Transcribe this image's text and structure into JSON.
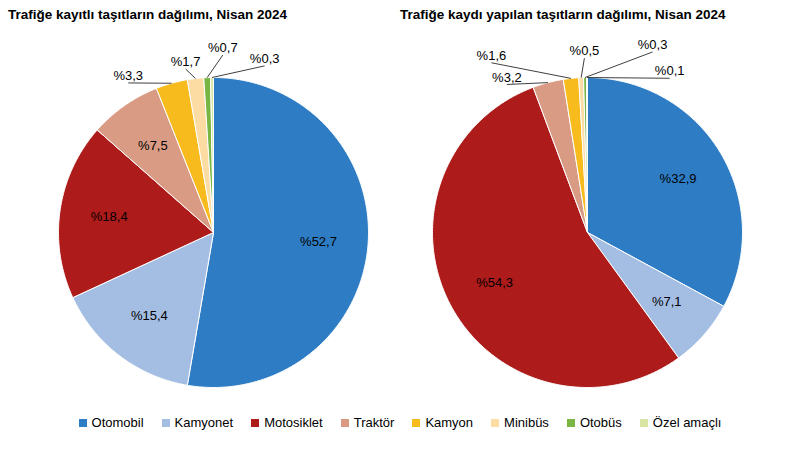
{
  "chart_data": [
    {
      "type": "pie",
      "title": "Trafiğe kayıtlı taşıtların dağılımı, Nisan 2024",
      "categories": [
        "Otomobil",
        "Kamyonet",
        "Motosiklet",
        "Traktör",
        "Kamyon",
        "Minibüs",
        "Otobüs",
        "Özel amaçlı"
      ],
      "values": [
        52.7,
        15.4,
        18.4,
        7.5,
        3.3,
        1.7,
        0.7,
        0.3
      ],
      "value_labels": [
        "%52,7",
        "%15,4",
        "%18,4",
        "%7,5",
        "%3,3",
        "%1,7",
        "%0,7",
        "%0,3"
      ],
      "colors": [
        "#2e7dc4",
        "#a4bee3",
        "#ad1b1b",
        "#da9b84",
        "#f8bb1d",
        "#fcdca3",
        "#78b543",
        "#d9e5a3"
      ],
      "data_labels": true,
      "legend": "bottom"
    },
    {
      "type": "pie",
      "title": "Trafiğe kaydı yapılan taşıtların dağılımı, Nisan 2024",
      "categories": [
        "Otomobil",
        "Kamyonet",
        "Motosiklet",
        "Traktör",
        "Kamyon",
        "Minibüs",
        "Otobüs",
        "Özel amaçlı"
      ],
      "values": [
        32.9,
        7.1,
        54.3,
        3.2,
        1.6,
        0.5,
        0.3,
        0.1
      ],
      "value_labels": [
        "%32,9",
        "%7,1",
        "%54,3",
        "%3,2",
        "%1,6",
        "%0,5",
        "%0,3",
        "%0,1"
      ],
      "colors": [
        "#2e7dc4",
        "#a4bee3",
        "#ad1b1b",
        "#da9b84",
        "#f8bb1d",
        "#fcdca3",
        "#78b543",
        "#d9e5a3"
      ],
      "data_labels": true,
      "legend": "bottom"
    }
  ]
}
